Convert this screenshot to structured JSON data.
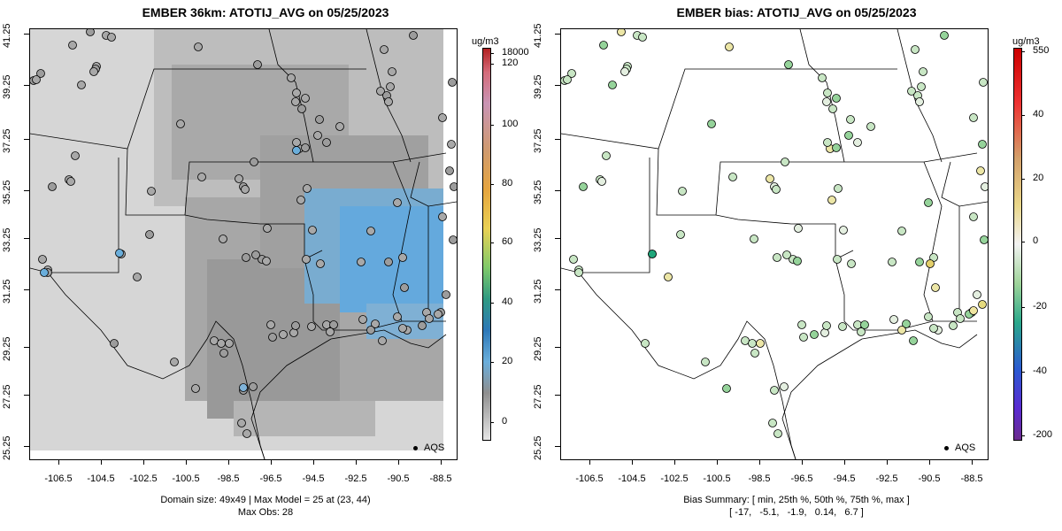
{
  "left": {
    "title": "EMBER 36km: ATOTIJ_AVG on 05/25/2023",
    "colorbar_units": "ug/m3",
    "colorbar_ticks": [
      "18000",
      "120",
      "100",
      "80",
      "60",
      "40",
      "20",
      "0"
    ],
    "caption_line1": "Domain size: 49x49 | Max Model = 25 at (23, 44)",
    "caption_line2": "Max Obs: 28",
    "legend": "AQS"
  },
  "right": {
    "title": "EMBER bias: ATOTIJ_AVG on 05/25/2023",
    "colorbar_units": "ug/m3",
    "colorbar_ticks": [
      "550",
      "40",
      "20",
      "0",
      "-20",
      "-40",
      "-200"
    ],
    "caption_line1": "Bias Summary: [ min, 25th %, 50th %, 75th %, max ]",
    "caption_line2": "[ -17,   -5.1,   -1.9,   0.14,   6.7 ]",
    "legend": "AQS",
    "bias_summary": {
      "min": -17,
      "p25": -5.1,
      "p50": -1.9,
      "p75": 0.14,
      "max": 6.7
    }
  },
  "axes": {
    "y_ticks": [
      "41.25",
      "39.25",
      "37.25",
      "35.25",
      "33.25",
      "31.25",
      "29.25",
      "27.25",
      "25.25"
    ],
    "x_ticks": [
      "-106.5",
      "-104.5",
      "-102.5",
      "-100.5",
      "-98.5",
      "-96.5",
      "-94.5",
      "-92.5",
      "-90.5",
      "-88.5"
    ]
  },
  "colors": {
    "grey_light": "#d9d9d9",
    "grey_mid": "#b3b3b3",
    "grey_dark": "#8f8f8f",
    "blue_model": "#6aaedb",
    "bias_green_light": "#c8e6c4",
    "bias_green": "#95d39a",
    "bias_teal": "#1fa67a",
    "bias_yellow": "#ece6a6"
  }
}
